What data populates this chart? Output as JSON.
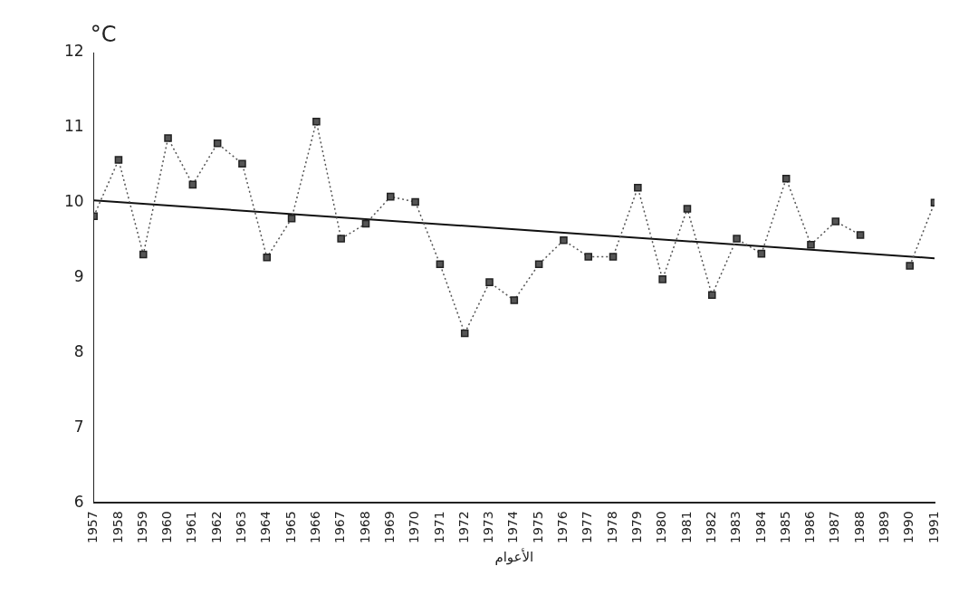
{
  "chart_data": {
    "type": "line",
    "xlabel": "الأعوام",
    "ylabel": "°C",
    "x": [
      1957,
      1958,
      1959,
      1960,
      1961,
      1962,
      1963,
      1964,
      1965,
      1966,
      1967,
      1968,
      1969,
      1970,
      1971,
      1972,
      1973,
      1974,
      1975,
      1976,
      1977,
      1978,
      1979,
      1980,
      1981,
      1982,
      1983,
      1984,
      1985,
      1986,
      1987,
      1988,
      1989,
      1990,
      1991
    ],
    "xlim": [
      1957,
      1991
    ],
    "xticks": [
      1957,
      1958,
      1959,
      1960,
      1961,
      1962,
      1963,
      1964,
      1965,
      1966,
      1967,
      1968,
      1969,
      1970,
      1971,
      1972,
      1973,
      1974,
      1975,
      1976,
      1977,
      1978,
      1979,
      1980,
      1981,
      1982,
      1983,
      1984,
      1985,
      1986,
      1987,
      1988,
      1989,
      1990,
      1991
    ],
    "ylim": [
      6,
      12
    ],
    "yticks": [
      6,
      7,
      8,
      9,
      10,
      11,
      12
    ],
    "series": [
      {
        "color": "#555555",
        "marker": "square",
        "line_style": "dotted",
        "values": [
          9.82,
          10.57,
          9.31,
          10.86,
          10.24,
          10.79,
          10.52,
          9.27,
          9.79,
          11.08,
          9.52,
          9.72,
          10.08,
          10.01,
          9.18,
          8.26,
          8.94,
          8.7,
          9.18,
          9.5,
          9.28,
          9.28,
          10.2,
          8.98,
          9.92,
          8.77,
          9.52,
          9.32,
          10.32,
          9.44,
          9.75,
          9.57,
          null,
          9.16,
          10.0
        ]
      },
      {
        "type": "line",
        "color": "#111111",
        "marker": "none",
        "line_style": "solid",
        "x": [
          1957,
          1991
        ],
        "values": [
          10.03,
          9.26
        ]
      }
    ],
    "grid": false,
    "legend": false
  }
}
